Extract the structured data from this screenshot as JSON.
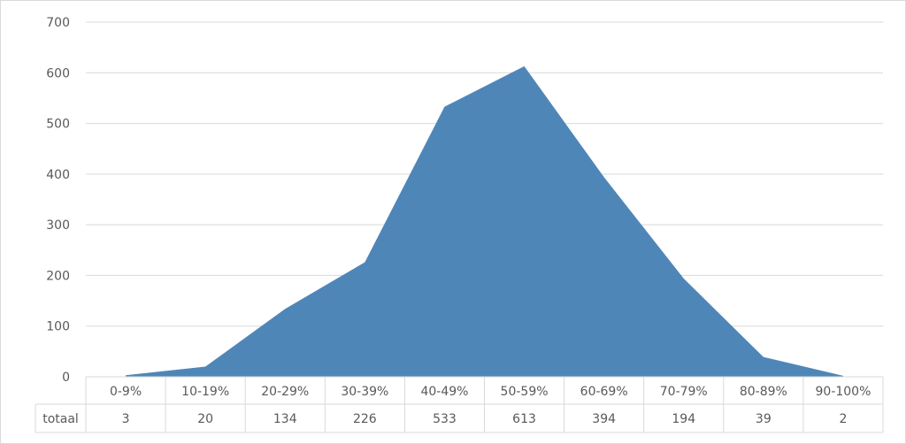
{
  "chart_data": {
    "type": "area",
    "categories": [
      "0-9%",
      "10-19%",
      "20-29%",
      "30-39%",
      "40-49%",
      "50-59%",
      "60-69%",
      "70-79%",
      "80-89%",
      "90-100%"
    ],
    "series": [
      {
        "name": "totaal",
        "values": [
          3,
          20,
          134,
          226,
          533,
          613,
          394,
          194,
          39,
          2
        ]
      }
    ],
    "ylim": [
      0,
      700
    ],
    "yticks": [
      0,
      100,
      200,
      300,
      400,
      500,
      600,
      700
    ],
    "grid": true,
    "data_table": true,
    "colors": {
      "area": "#4f86b8",
      "grid": "#d9d9d9",
      "text": "#595959"
    }
  }
}
